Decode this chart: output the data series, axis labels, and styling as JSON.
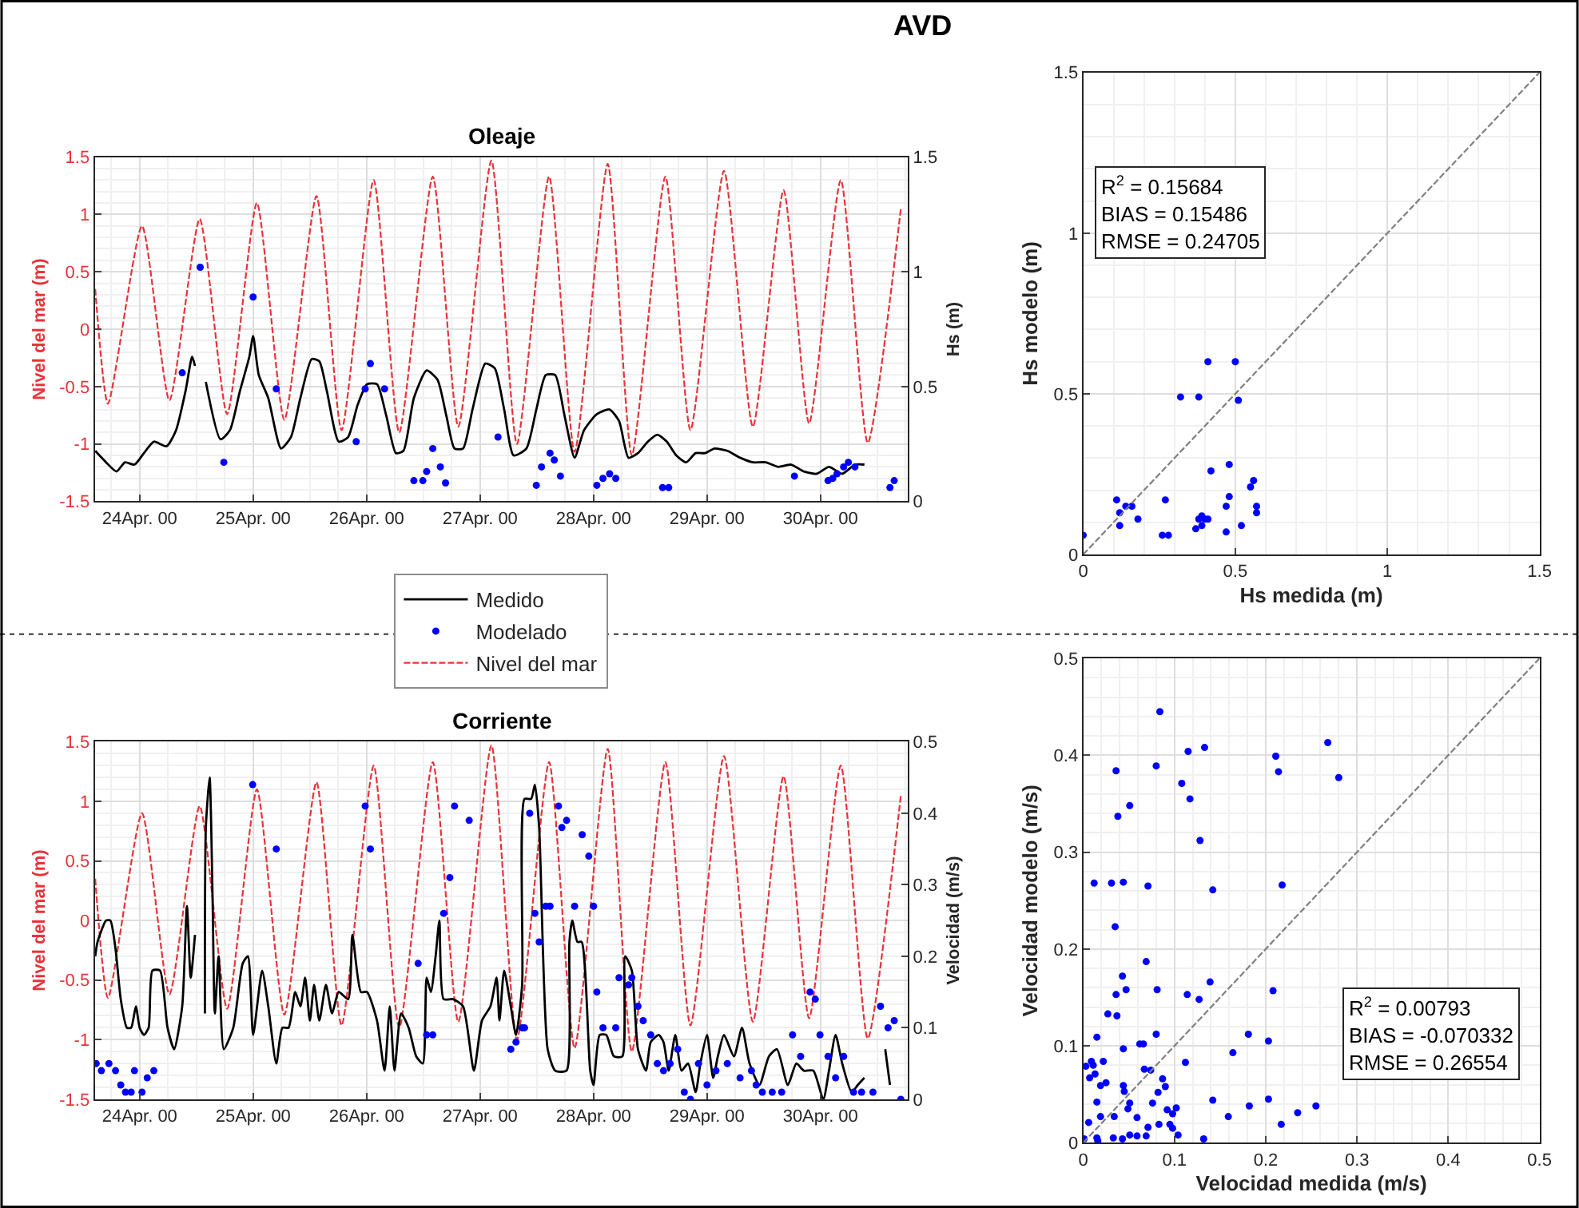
{
  "chart_data": [
    {
      "type": "line",
      "title": "Oleaje",
      "ylabel": "Nivel del mar (m)",
      "y2label": "Hs (m)",
      "annotations": [
        "AVD"
      ],
      "xlim": [
        "2000-04-23T14:30",
        "2000-04-30T18:30"
      ],
      "xticks": [
        {
          "value": "2000-04-24",
          "label": "24Apr. 00"
        },
        {
          "value": "2000-04-25",
          "label": "25Apr. 00"
        },
        {
          "value": "2000-04-26",
          "label": "26Apr. 00"
        },
        {
          "value": "2000-04-27",
          "label": "27Apr. 00"
        },
        {
          "value": "2000-04-28",
          "label": "28Apr. 00"
        },
        {
          "value": "2000-04-29",
          "label": "29Apr. 00"
        },
        {
          "value": "2000-04-30",
          "label": "30Apr. 00"
        }
      ],
      "ylim": [
        -1.5,
        1.5
      ],
      "yticks": [
        -1.5,
        -1,
        -0.5,
        0,
        0.5,
        1,
        1.5
      ],
      "y2lim": [
        0,
        1.5
      ],
      "y2ticks": [
        0,
        0.5,
        1,
        1.5
      ],
      "grid": true,
      "legend": "bottom",
      "series": [
        {
          "name": "Medido",
          "type": "line",
          "axis": "y2",
          "color": "#000000",
          "line_style": "solid",
          "x": [
            "2000-04-23T14:36",
            "2000-04-23T16:54",
            "2000-04-23T19:06",
            "2000-04-23T20:54",
            "2000-04-23T22:54",
            "2000-04-24T00:54",
            "2000-04-24T03:00",
            "2000-04-24T05:42",
            "2000-04-24T07:42",
            "2000-04-24T09:42",
            "2000-04-24T11:06",
            "2000-04-24T11:42",
            "2000-04-24T12:48",
            "2000-04-24T14:00",
            "2000-04-24T17:06",
            "2000-04-24T19:06",
            "2000-04-24T21:12",
            "2000-04-24T23:12",
            "2000-04-25T00:00",
            "2000-04-25T01:12",
            "2000-04-25T03:12",
            "2000-04-25T05:54",
            "2000-04-25T08:00",
            "2000-04-25T10:00",
            "2000-04-25T12:24",
            "2000-04-25T14:00",
            "2000-04-25T15:36",
            "2000-04-25T18:06",
            "2000-04-25T20:06",
            "2000-04-25T22:06",
            "2000-04-26T00:06",
            "2000-04-26T02:12",
            "2000-04-26T04:12",
            "2000-04-26T06:12",
            "2000-04-26T07:48",
            "2000-04-26T10:00",
            "2000-04-26T12:42",
            "2000-04-26T15:00",
            "2000-04-26T16:54",
            "2000-04-26T18:36",
            "2000-04-26T20:24",
            "2000-04-26T22:24",
            "2000-04-27T01:06",
            "2000-04-27T03:06",
            "2000-04-27T05:06",
            "2000-04-27T07:06",
            "2000-04-27T09:48",
            "2000-04-27T11:54",
            "2000-04-27T13:54",
            "2000-04-27T15:54",
            "2000-04-27T17:54",
            "2000-04-27T20:00",
            "2000-04-27T22:00",
            "2000-04-28T00:42",
            "2000-04-28T03:24",
            "2000-04-28T05:24",
            "2000-04-28T07:24",
            "2000-04-28T09:24",
            "2000-04-28T11:30",
            "2000-04-28T13:30",
            "2000-04-28T15:30",
            "2000-04-28T17:30",
            "2000-04-28T19:36",
            "2000-04-28T21:36",
            "2000-04-28T23:36",
            "2000-04-29T01:36",
            "2000-04-29T04:18",
            "2000-04-29T07:00",
            "2000-04-29T09:42",
            "2000-04-29T12:24",
            "2000-04-29T15:06",
            "2000-04-29T17:48",
            "2000-04-29T20:30",
            "2000-04-29T23:12",
            "2000-04-30T01:48",
            "2000-04-30T04:36",
            "2000-04-30T07:18",
            "2000-04-30T09:18"
          ],
          "values": [
            0.22,
            0.17,
            0.13,
            0.17,
            0.16,
            0.21,
            0.26,
            0.24,
            0.31,
            0.48,
            0.63,
            0.59,
            null,
            0.52,
            0.27,
            0.31,
            0.48,
            0.63,
            0.72,
            0.55,
            0.45,
            0.23,
            0.28,
            0.45,
            0.62,
            0.61,
            0.48,
            0.26,
            0.28,
            0.42,
            0.51,
            0.51,
            0.37,
            0.21,
            0.22,
            0.45,
            0.57,
            0.53,
            0.37,
            0.23,
            0.23,
            0.4,
            0.6,
            0.58,
            0.4,
            0.2,
            0.23,
            0.4,
            0.55,
            0.55,
            0.37,
            0.19,
            0.31,
            0.38,
            0.4,
            0.35,
            0.19,
            0.21,
            0.26,
            0.29,
            0.26,
            0.2,
            0.17,
            0.21,
            0.21,
            0.23,
            0.22,
            0.19,
            0.17,
            0.17,
            0.15,
            0.16,
            0.13,
            0.12,
            0.15,
            0.12,
            0.16,
            0.16
          ]
        },
        {
          "name": "Modelado",
          "type": "scatter",
          "axis": "y2",
          "color": "#0000ff",
          "marker": "circle",
          "x": [
            "2000-04-24T09:00",
            "2000-04-24T12:48",
            "2000-04-24T17:48",
            "2000-04-25T00:00",
            "2000-04-25T04:54",
            "2000-04-25T21:48",
            "2000-04-25T23:42",
            "2000-04-26T00:48",
            "2000-04-26T03:48",
            "2000-04-26T10:00",
            "2000-04-26T11:54",
            "2000-04-26T12:42",
            "2000-04-26T14:00",
            "2000-04-26T15:36",
            "2000-04-26T16:42",
            "2000-04-27T03:48",
            "2000-04-27T11:54",
            "2000-04-27T13:00",
            "2000-04-27T14:48",
            "2000-04-27T15:42",
            "2000-04-27T17:00",
            "2000-04-28T00:42",
            "2000-04-28T02:00",
            "2000-04-28T03:24",
            "2000-04-28T04:42",
            "2000-04-28T14:36",
            "2000-04-28T15:54",
            "2000-04-29T18:30",
            "2000-04-30T01:36",
            "2000-04-30T02:36",
            "2000-04-30T03:30",
            "2000-04-30T04:54",
            "2000-04-30T05:54",
            "2000-04-30T07:18",
            "2000-04-30T14:42",
            "2000-04-30T15:36"
          ],
          "values": [
            0.56,
            1.02,
            0.17,
            0.89,
            0.49,
            0.26,
            0.49,
            0.6,
            0.49,
            0.09,
            0.09,
            0.13,
            0.23,
            0.15,
            0.08,
            0.28,
            0.07,
            0.15,
            0.21,
            0.18,
            0.11,
            0.07,
            0.1,
            0.12,
            0.1,
            0.06,
            0.06,
            0.11,
            0.09,
            0.1,
            0.12,
            0.15,
            0.17,
            0.15,
            0.06,
            0.09
          ]
        },
        {
          "name": "Nivel del mar",
          "type": "line",
          "color": "#e8333a",
          "line_style": "dashed",
          "x": [
            "2000-04-23T14:36",
            "2000-04-23T17:18",
            "2000-04-24T00:30",
            "2000-04-24T06:18",
            "2000-04-24T12:42",
            "2000-04-24T18:30",
            "2000-04-25T00:48",
            "2000-04-25T06:36",
            "2000-04-25T13:24",
            "2000-04-25T18:42",
            "2000-04-26T01:30",
            "2000-04-26T06:54",
            "2000-04-26T14:00",
            "2000-04-26T19:24",
            "2000-04-27T02:24",
            "2000-04-27T07:48",
            "2000-04-27T14:36",
            "2000-04-27T20:00",
            "2000-04-28T03:00",
            "2000-04-28T08:06",
            "2000-04-28T15:12",
            "2000-04-28T20:30",
            "2000-04-29T03:36",
            "2000-04-29T09:42",
            "2000-04-29T16:12",
            "2000-04-29T21:36",
            "2000-04-30T04:18",
            "2000-04-30T10:00",
            "2000-04-30T17:00"
          ],
          "values": [
            0.35,
            -0.65,
            0.9,
            -0.62,
            0.96,
            -0.74,
            1.1,
            -0.79,
            1.16,
            -0.88,
            1.3,
            -0.9,
            1.33,
            -0.85,
            1.47,
            -1.0,
            1.33,
            -1.07,
            1.44,
            -1.1,
            1.33,
            -0.88,
            1.38,
            -0.85,
            1.21,
            -0.82,
            1.3,
            -0.99,
            1.05
          ]
        }
      ]
    },
    {
      "type": "line",
      "title": "Corriente",
      "ylabel": "Nivel del mar (m)",
      "y2label": "Velocidad (m/s)",
      "xlim": [
        "2000-04-23T14:30",
        "2000-04-30T18:30"
      ],
      "xticks": [
        {
          "value": "2000-04-24",
          "label": "24Apr. 00"
        },
        {
          "value": "2000-04-25",
          "label": "25Apr. 00"
        },
        {
          "value": "2000-04-26",
          "label": "26Apr. 00"
        },
        {
          "value": "2000-04-27",
          "label": "27Apr. 00"
        },
        {
          "value": "2000-04-28",
          "label": "28Apr. 00"
        },
        {
          "value": "2000-04-29",
          "label": "29Apr. 00"
        },
        {
          "value": "2000-04-30",
          "label": "30Apr. 00"
        }
      ],
      "ylim": [
        -1.5,
        1.5
      ],
      "yticks": [
        -1.5,
        -1,
        -0.5,
        0,
        0.5,
        1,
        1.5
      ],
      "y2lim": [
        0,
        0.5
      ],
      "y2ticks": [
        0,
        0.1,
        0.2,
        0.3,
        0.4,
        0.5
      ],
      "grid": true,
      "series": [
        {
          "type": "line",
          "axis": "y2",
          "color": "#000000",
          "line_style": "solid",
          "x": [
            "2000-04-23T14:36",
            "2000-04-23T15:06",
            "2000-04-23T16:54",
            "2000-04-23T17:48",
            "2000-04-23T18:54",
            "2000-04-23T20:00",
            "2000-04-23T21:18",
            "2000-04-23T22:12",
            "2000-04-23T23:12",
            "2000-04-24T00:00",
            "2000-04-24T00:54",
            "2000-04-24T01:54",
            "2000-04-24T02:42",
            "2000-04-24T04:18",
            "2000-04-24T05:54",
            "2000-04-24T07:18",
            "2000-04-24T09:00",
            "2000-04-24T10:00",
            "2000-04-24T10:48",
            "2000-04-24T11:42",
            "2000-04-24T12:30",
            "2000-04-24T13:48",
            "2000-04-24T14:00",
            "2000-04-24T14:48",
            "2000-04-24T15:24",
            "2000-04-24T15:54",
            "2000-04-24T16:42",
            "2000-04-24T17:48",
            "2000-04-24T19:48",
            "2000-04-24T21:48",
            "2000-04-24T22:54",
            "2000-04-25T00:00",
            "2000-04-25T01:54",
            "2000-04-25T03:12",
            "2000-04-25T04:54",
            "2000-04-25T06:12",
            "2000-04-25T07:30",
            "2000-04-25T08:54",
            "2000-04-25T10:00",
            "2000-04-25T11:00",
            "2000-04-25T12:00",
            "2000-04-25T12:54",
            "2000-04-25T14:00",
            "2000-04-25T15:24",
            "2000-04-25T16:42",
            "2000-04-25T18:06",
            "2000-04-25T20:06",
            "2000-04-25T21:00",
            "2000-04-25T22:48",
            "2000-04-26T00:06",
            "2000-04-26T02:12",
            "2000-04-26T03:48",
            "2000-04-26T04:54",
            "2000-04-26T05:54",
            "2000-04-26T07:18",
            "2000-04-26T08:54",
            "2000-04-26T10:30",
            "2000-04-26T11:54",
            "2000-04-26T12:42",
            "2000-04-26T13:36",
            "2000-04-26T14:36",
            "2000-04-26T15:24",
            "2000-04-26T16:18",
            "2000-04-26T18:18",
            "2000-04-26T20:24",
            "2000-04-26T22:42",
            "2000-04-27T00:24",
            "2000-04-27T02:12",
            "2000-04-27T03:30",
            "2000-04-27T04:06",
            "2000-04-27T05:06",
            "2000-04-27T06:30",
            "2000-04-27T07:36",
            "2000-04-27T08:54",
            "2000-04-27T09:24",
            "2000-04-27T10:48",
            "2000-04-27T11:36",
            "2000-04-27T12:30",
            "2000-04-27T14:18",
            "2000-04-27T15:54",
            "2000-04-27T18:18",
            "2000-04-27T18:54",
            "2000-04-27T19:30",
            "2000-04-27T20:36",
            "2000-04-27T21:30",
            "2000-04-27T23:18",
            "2000-04-28T00:00",
            "2000-04-28T01:18",
            "2000-04-28T02:42",
            "2000-04-28T04:18",
            "2000-04-28T06:06",
            "2000-04-28T06:42",
            "2000-04-28T08:06",
            "2000-04-28T09:24",
            "2000-04-28T11:06",
            "2000-04-28T12:06",
            "2000-04-28T13:48",
            "2000-04-28T14:48",
            "2000-04-28T15:54",
            "2000-04-28T17:18",
            "2000-04-28T18:36",
            "2000-04-28T20:00",
            "2000-04-28T21:36",
            "2000-04-28T22:36",
            "2000-04-29T00:00",
            "2000-04-29T01:18",
            "2000-04-29T02:18",
            "2000-04-29T03:36",
            "2000-04-29T05:42",
            "2000-04-29T07:24",
            "2000-04-29T09:00",
            "2000-04-29T11:06",
            "2000-04-29T13:06",
            "2000-04-29T14:48",
            "2000-04-29T17:06",
            "2000-04-29T18:54",
            "2000-04-29T20:30",
            "2000-04-29T22:30",
            "2000-04-30T00:36",
            "2000-04-30T01:48",
            "2000-04-30T03:12",
            "2000-04-30T04:36",
            "2000-04-30T06:36",
            "2000-04-30T07:54",
            "2000-04-30T09:18",
            "2000-04-30T11:00",
            "2000-04-30T13:42",
            "2000-04-30T14:42"
          ],
          "values": [
            0.2,
            0.22,
            0.25,
            0.25,
            0.21,
            0.14,
            0.1,
            0.1,
            0.13,
            0.1,
            0.09,
            0.1,
            0.18,
            0.18,
            0.1,
            0.07,
            0.13,
            0.27,
            0.17,
            0.23,
            null,
            0.12,
            0.38,
            0.45,
            0.29,
            0.12,
            0.2,
            0.07,
            0.1,
            0.19,
            0.2,
            0.09,
            0.18,
            0.13,
            0.05,
            0.1,
            0.1,
            0.15,
            0.13,
            0.17,
            0.11,
            0.16,
            0.11,
            0.16,
            0.12,
            0.15,
            0.14,
            0.23,
            0.15,
            0.15,
            0.11,
            0.04,
            0.13,
            0.04,
            0.12,
            0.1,
            0.06,
            0.05,
            0.17,
            0.15,
            0.2,
            0.25,
            0.14,
            0.14,
            0.13,
            0.04,
            0.11,
            0.13,
            0.17,
            0.11,
            0.18,
            0.13,
            0.09,
            0.16,
            0.42,
            0.42,
            0.44,
            0.38,
            0.07,
            0.04,
            0.04,
            0.22,
            0.25,
            0.22,
            0.22,
            0.04,
            0.02,
            0.09,
            0.09,
            0.06,
            0.06,
            0.2,
            0.18,
            0.07,
            0.04,
            0.08,
            0.09,
            0.08,
            0.04,
            0.09,
            0.04,
            0.05,
            0.01,
            0.05,
            0.09,
            0.03,
            0.06,
            0.09,
            0.06,
            0.1,
            0.05,
            0.02,
            0.06,
            0.07,
            0.02,
            0.05,
            0.04,
            0.04,
            0,
            0.04,
            0.09,
            0.05,
            0.01,
            0.02,
            0.03,
            null,
            0.07,
            0.02
          ]
        },
        {
          "type": "scatter",
          "axis": "y2",
          "color": "#0000ff",
          "marker": "circle",
          "x": [
            "2000-04-23T14:48",
            "2000-04-23T15:54",
            "2000-04-23T17:30",
            "2000-04-23T18:54",
            "2000-04-23T20:00",
            "2000-04-23T21:00",
            "2000-04-23T22:12",
            "2000-04-23T22:54",
            "2000-04-24T00:30",
            "2000-04-24T01:36",
            "2000-04-24T03:00",
            "2000-04-24T23:54",
            "2000-04-25T04:54",
            "2000-04-25T23:42",
            "2000-04-26T00:48",
            "2000-04-26T10:54",
            "2000-04-26T12:42",
            "2000-04-26T14:00",
            "2000-04-26T16:18",
            "2000-04-26T17:36",
            "2000-04-26T18:36",
            "2000-04-26T21:42",
            "2000-04-27T06:30",
            "2000-04-27T07:36",
            "2000-04-27T08:54",
            "2000-04-27T09:24",
            "2000-04-27T10:30",
            "2000-04-27T11:36",
            "2000-04-27T12:30",
            "2000-04-27T13:54",
            "2000-04-27T14:48",
            "2000-04-27T16:36",
            "2000-04-27T17:18",
            "2000-04-27T18:18",
            "2000-04-27T20:00",
            "2000-04-27T21:36",
            "2000-04-27T23:00",
            "2000-04-28T00:00",
            "2000-04-28T00:42",
            "2000-04-28T02:00",
            "2000-04-28T04:42",
            "2000-04-28T05:24",
            "2000-04-28T07:24",
            "2000-04-28T08:06",
            "2000-04-28T09:24",
            "2000-04-28T10:30",
            "2000-04-28T12:06",
            "2000-04-28T13:30",
            "2000-04-28T14:48",
            "2000-04-28T16:12",
            "2000-04-28T17:48",
            "2000-04-28T19:12",
            "2000-04-28T20:30",
            "2000-04-28T22:12",
            "2000-04-29T00:00",
            "2000-04-29T01:54",
            "2000-04-29T04:18",
            "2000-04-29T07:00",
            "2000-04-29T09:24",
            "2000-04-29T10:24",
            "2000-04-29T11:42",
            "2000-04-29T13:48",
            "2000-04-29T15:48",
            "2000-04-29T18:06",
            "2000-04-29T19:48",
            "2000-04-29T21:48",
            "2000-04-29T22:54",
            "2000-04-29T23:54",
            "2000-04-30T01:36",
            "2000-04-30T03:12",
            "2000-04-30T04:54",
            "2000-04-30T07:00",
            "2000-04-30T08:42",
            "2000-04-30T11:06",
            "2000-04-30T12:42",
            "2000-04-30T14:18",
            "2000-04-30T15:36",
            "2000-04-30T17:00"
          ],
          "values": [
            0.05,
            0.04,
            0.05,
            0.04,
            0.02,
            0.01,
            0.01,
            0.04,
            0.01,
            0.03,
            0.04,
            0.44,
            0.35,
            0.41,
            0.35,
            0.19,
            0.09,
            0.09,
            0.26,
            0.31,
            0.41,
            0.39,
            0.07,
            0.08,
            0.1,
            0.1,
            0.4,
            0.26,
            0.22,
            0.27,
            0.27,
            0.41,
            0.38,
            0.39,
            0.27,
            0.37,
            0.34,
            0.27,
            0.15,
            0.1,
            0.1,
            0.17,
            0.16,
            0.17,
            0.13,
            0.11,
            0.09,
            0.05,
            0.04,
            0.05,
            0.07,
            0.01,
            0,
            0.05,
            0.02,
            0.04,
            0.05,
            0.03,
            0.04,
            0.02,
            0.01,
            0.01,
            0.01,
            0.09,
            0.06,
            0.15,
            0.14,
            0.09,
            0.06,
            0.03,
            0.06,
            0.01,
            0.01,
            0.01,
            0.13,
            0.1,
            0.11,
            0
          ]
        },
        {
          "type": "line",
          "color": "#e8333a",
          "line_style": "dashed",
          "x": [
            "2000-04-23T14:36",
            "2000-04-23T17:18",
            "2000-04-24T00:30",
            "2000-04-24T06:18",
            "2000-04-24T12:42",
            "2000-04-24T18:30",
            "2000-04-25T00:48",
            "2000-04-25T06:36",
            "2000-04-25T13:24",
            "2000-04-25T18:42",
            "2000-04-26T01:30",
            "2000-04-26T06:54",
            "2000-04-26T14:00",
            "2000-04-26T19:24",
            "2000-04-27T02:24",
            "2000-04-27T07:48",
            "2000-04-27T14:36",
            "2000-04-27T20:00",
            "2000-04-28T03:00",
            "2000-04-28T08:06",
            "2000-04-28T15:12",
            "2000-04-28T20:30",
            "2000-04-29T03:36",
            "2000-04-29T09:42",
            "2000-04-29T16:12",
            "2000-04-29T21:36",
            "2000-04-30T04:18",
            "2000-04-30T10:00",
            "2000-04-30T17:00"
          ],
          "values": [
            0.35,
            -0.65,
            0.9,
            -0.62,
            0.96,
            -0.74,
            1.1,
            -0.79,
            1.16,
            -0.88,
            1.3,
            -0.9,
            1.33,
            -0.85,
            1.47,
            -1.0,
            1.33,
            -1.07,
            1.44,
            -1.1,
            1.33,
            -0.88,
            1.38,
            -0.85,
            1.21,
            -0.82,
            1.3,
            -0.99,
            1.05
          ]
        }
      ]
    },
    {
      "type": "scatter",
      "xlabel": "Hs medida (m)",
      "ylabel": "Hs modelo (m)",
      "annotations": [
        "R$^{2}$ = 0.15684\nBIAS = 0.15486\nRMSE = 0.24705"
      ],
      "xlim": [
        0,
        1.5
      ],
      "xticks": [
        0,
        0.5,
        1,
        1.5
      ],
      "ylim": [
        0,
        1.5
      ],
      "yticks": [
        0,
        0.5,
        1,
        1.5
      ],
      "grid": true,
      "series": [
        {
          "color": "#0000ff",
          "marker": "circle",
          "x": [
            0,
            0.11,
            0.12,
            0.12,
            0.14,
            0.16,
            0.18,
            0.27,
            0.26,
            0.28,
            0.32,
            0.38,
            0.37,
            0.38,
            0.39,
            0.39,
            0.4,
            0.41,
            0.41,
            0.42,
            0.47,
            0.48,
            0.47,
            0.48,
            0.5,
            0.51,
            0.52,
            0.55,
            0.56,
            0.57,
            0.57
          ],
          "values": [
            0.06,
            0.17,
            0.13,
            0.09,
            0.15,
            0.15,
            0.11,
            0.17,
            0.06,
            0.06,
            0.49,
            0.49,
            0.08,
            0.11,
            0.09,
            0.12,
            0.11,
            0.11,
            0.6,
            0.26,
            0.15,
            0.18,
            0.07,
            0.28,
            0.6,
            0.48,
            0.09,
            0.21,
            0.23,
            0.15,
            0.13
          ]
        },
        {
          "type": "line",
          "color": "#808080",
          "line_style": "dashed",
          "x": [
            0,
            1.5
          ],
          "values": [
            0,
            1.5
          ]
        }
      ]
    },
    {
      "type": "scatter",
      "xlabel": "Velocidad medida (m/s)",
      "ylabel": "Velocidad modelo (m/s)",
      "annotations": [
        "R$^{2}$ = 0.00793\nBIAS = -0.070332\nRMSE = 0.26554"
      ],
      "xlim": [
        0,
        0.5
      ],
      "xticks": [
        0,
        0.1,
        0.2,
        0.3,
        0.4,
        0.5
      ],
      "ylim": [
        0,
        0.5
      ],
      "yticks": [
        0,
        0.1,
        0.2,
        0.3,
        0.4,
        0.5
      ],
      "grid": true,
      "series": [
        {
          "color": "#0000ff",
          "marker": "circle",
          "x": [
            0.084,
            0.133,
            0.115,
            0.08,
            0.036,
            0.108,
            0.117,
            0.051,
            0.038,
            0.128,
            0.012,
            0.031,
            0.044,
            0.071,
            0.142,
            0.035,
            0.069,
            0.043,
            0.047,
            0.036,
            0.037,
            0.027,
            0.081,
            0.114,
            0.127,
            0.139,
            0.208,
            0.015,
            0.011,
            0.003,
            0.007,
            0.013,
            0.009,
            0.022,
            0.044,
            0.062,
            0.066,
            0.08,
            0.067,
            0.074,
            0.087,
            0.09,
            0.082,
            0.112,
            0.164,
            0.181,
            0.203,
            0.025,
            0.019,
            0.044,
            0.045,
            0.051,
            0.076,
            0.015,
            0.034,
            0.049,
            0.006,
            0.019,
            0.059,
            0.071,
            0.083,
            0.092,
            0.098,
            0.102,
            0.095,
            0.098,
            0.104,
            0.142,
            0.159,
            0.182,
            0.203,
            0.235,
            0.255,
            0.217,
            0.268,
            0.211,
            0.214,
            0.28,
            0.218,
            0.132,
            0.001,
            0.015,
            0.016,
            0.033,
            0.043,
            0.051,
            0.059,
            0.069
          ],
          "values": [
            0.445,
            0.408,
            0.404,
            0.389,
            0.384,
            0.371,
            0.355,
            0.348,
            0.337,
            0.312,
            0.268,
            0.268,
            0.269,
            0.265,
            0.261,
            0.223,
            0.187,
            0.172,
            0.158,
            0.153,
            0.131,
            0.133,
            0.158,
            0.153,
            0.148,
            0.166,
            0.157,
            0.109,
            0.08,
            0.079,
            0.067,
            0.071,
            0.084,
            0.084,
            0.097,
            0.102,
            0.102,
            0.112,
            0.076,
            0.075,
            0.066,
            0.058,
            0.052,
            0.083,
            0.093,
            0.112,
            0.105,
            0.062,
            0.059,
            0.059,
            0.053,
            0.041,
            0.041,
            0.042,
            0.027,
            0.035,
            0.021,
            0.027,
            0.026,
            0.016,
            0.019,
            0.034,
            0.03,
            0.036,
            0.019,
            0.015,
            0.008,
            0.044,
            0.027,
            0.038,
            0.045,
            0.031,
            0.038,
            0.019,
            0.413,
            0.399,
            0.383,
            0.377,
            0.266,
            0.004,
            0.004,
            0.005,
            0.002,
            0.005,
            0.004,
            0.008,
            0.007,
            0.007
          ]
        },
        {
          "type": "line",
          "color": "#808080",
          "line_style": "dashed",
          "x": [
            0,
            0.5
          ],
          "values": [
            0,
            0.5
          ]
        }
      ]
    }
  ]
}
